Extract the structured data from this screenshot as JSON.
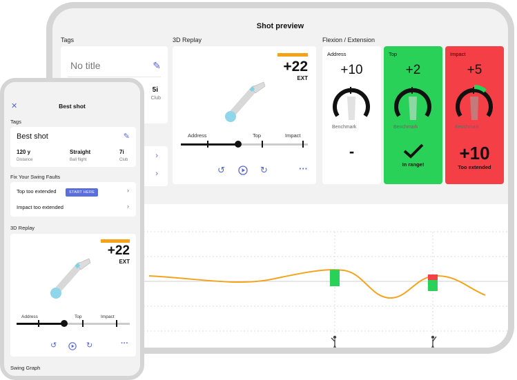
{
  "tablet": {
    "title": "Shot preview",
    "tags_section": "Tags",
    "tags_card": {
      "title": "No title",
      "club_value": "5i",
      "club_label": "Club"
    },
    "replay_section": "3D Replay",
    "replay": {
      "ext_value": "+22",
      "ext_label": "EXT",
      "slider_labels": [
        "Address",
        "Top",
        "Impact"
      ],
      "progress": 0.5
    },
    "flexion_section": "Flexion / Extension",
    "flexion_cards": [
      {
        "name": "Address",
        "value": "+10",
        "benchmark": "Benchmark",
        "result": "-",
        "result_label": "",
        "color": "#ffffff"
      },
      {
        "name": "Top",
        "value": "+2",
        "benchmark": "Benchmark",
        "result": "✓",
        "result_label": "In range!",
        "color": "#29d158"
      },
      {
        "name": "Impact",
        "value": "+5",
        "benchmark": "Benchmark",
        "result": "+10",
        "result_label": "Too extended",
        "color": "#f53f47"
      }
    ]
  },
  "phone": {
    "title": "Best shot",
    "tags_section": "Tags",
    "tags_card": {
      "name": "Best shot",
      "stats": [
        {
          "value": "120 y",
          "label": "Distance"
        },
        {
          "value": "Straight",
          "label": "Ball flight"
        },
        {
          "value": "7i",
          "label": "Club"
        }
      ]
    },
    "faults_section": "Fix Your Swing Faults",
    "faults": [
      {
        "label": "Top too extended",
        "action": "START HERE"
      },
      {
        "label": "Impact too extended",
        "action": ""
      }
    ],
    "replay_section": "3D Replay",
    "replay": {
      "ext_value": "+22",
      "ext_label": "EXT",
      "slider_labels": [
        "Address",
        "Top",
        "Impact"
      ],
      "progress": 0.42
    },
    "graph_section": "Swing Graph"
  },
  "colors": {
    "accent": "#5566d4",
    "orange": "#f5a21b",
    "green": "#29d158",
    "red": "#f53f47"
  },
  "icons": [
    "close-icon",
    "edit-icon",
    "chevron-right-icon",
    "rewind-icon",
    "play-icon",
    "forward-icon",
    "more-icon",
    "golfer-icon"
  ]
}
